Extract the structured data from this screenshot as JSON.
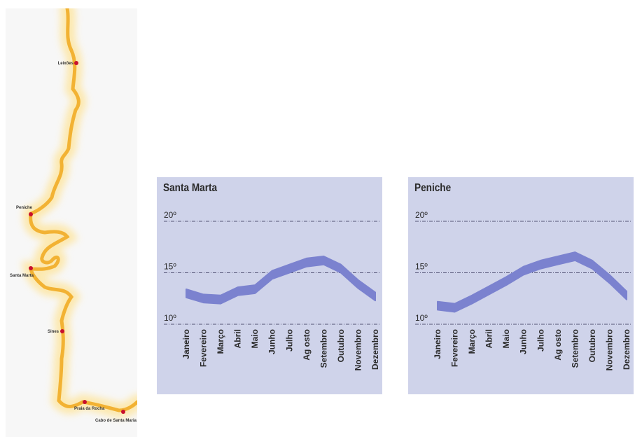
{
  "map": {
    "coast_color": "#f2b233",
    "glow_color": "#fde7a8",
    "dot_color": "#c8102e",
    "places": [
      {
        "name": "Leixões"
      },
      {
        "name": "Peniche"
      },
      {
        "name": "Santa Marta"
      },
      {
        "name": "Sines"
      },
      {
        "name": "Praia da Rocha"
      },
      {
        "name": "Cabo de Santa Maria"
      }
    ]
  },
  "chart_data": [
    {
      "type": "area",
      "title": "Santa Marta",
      "categories": [
        "Janeiro",
        "Fevereiro",
        "Março",
        "Abril",
        "Maio",
        "Junho",
        "Julho",
        "Agosto",
        "Setembro",
        "Outubro",
        "Novembro",
        "Dezembro"
      ],
      "tick_labels": [
        "Janeiro",
        "Fevereiro",
        "Março",
        "Abril",
        "Maio",
        "Junho",
        "Julho",
        "Ag osto",
        "Setembro",
        "Outubro",
        "Novembro",
        "Dezembro"
      ],
      "series": [
        {
          "lower": [
            12.6,
            12.1,
            12.0,
            12.8,
            13.0,
            14.4,
            15.0,
            15.6,
            15.8,
            15.0,
            13.5,
            12.3
          ],
          "upper": [
            13.4,
            12.9,
            12.8,
            13.6,
            13.8,
            15.2,
            15.8,
            16.4,
            16.6,
            15.8,
            14.3,
            13.1
          ]
        }
      ],
      "yticks": [
        {
          "value": 20,
          "label": "20º"
        },
        {
          "value": 15,
          "label": "15º"
        },
        {
          "value": 10,
          "label": "10º"
        }
      ],
      "ylim": [
        10,
        20
      ],
      "grid": true,
      "band_color": "#7b82cf",
      "background": "#cfd3ea"
    },
    {
      "type": "area",
      "title": "Peniche",
      "categories": [
        "Janeiro",
        "Fevereiro",
        "Março",
        "Abril",
        "Maio",
        "Junho",
        "Julho",
        "Agosto",
        "Setembro",
        "Outubro",
        "Novembro",
        "Dezembro"
      ],
      "tick_labels": [
        "Janeiro",
        "Fevereiro",
        "Março",
        "Abril",
        "Maio",
        "Junho",
        "Julho",
        "Ag osto",
        "Setembro",
        "Outubro",
        "Novembro",
        "Dezembro"
      ],
      "series": [
        {
          "lower": [
            11.4,
            11.2,
            12.0,
            12.9,
            13.8,
            14.8,
            15.4,
            15.8,
            16.2,
            15.4,
            14.0,
            12.4
          ],
          "upper": [
            12.2,
            12.0,
            12.8,
            13.7,
            14.6,
            15.6,
            16.2,
            16.6,
            17.0,
            16.2,
            14.8,
            13.2
          ]
        }
      ],
      "yticks": [
        {
          "value": 20,
          "label": "20º"
        },
        {
          "value": 15,
          "label": "15º"
        },
        {
          "value": 10,
          "label": "10º"
        }
      ],
      "ylim": [
        10,
        20
      ],
      "grid": true,
      "band_color": "#7b82cf",
      "background": "#cfd3ea"
    }
  ]
}
